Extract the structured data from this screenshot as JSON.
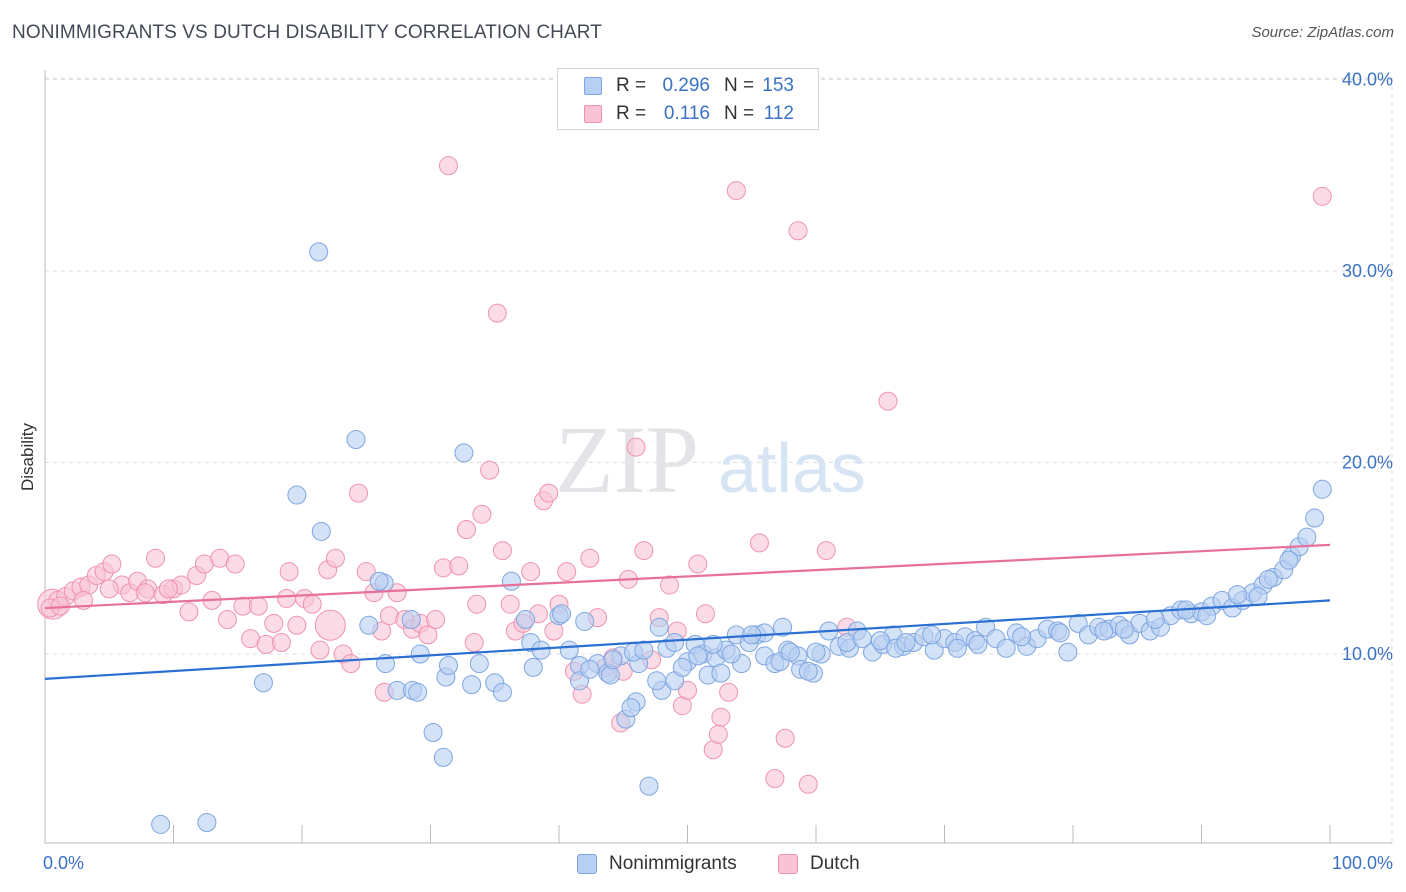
{
  "title": "NONIMMIGRANTS VS DUTCH DISABILITY CORRELATION CHART",
  "source": "Source: ZipAtlas.com",
  "watermark": {
    "zip": "ZIP",
    "atlas": "atlas"
  },
  "legend_top": [
    {
      "r_label": "R =",
      "r_value": "0.296",
      "n_label": "N =",
      "n_value": "153"
    },
    {
      "r_label": "R =",
      "r_value": "0.116",
      "n_label": "N =",
      "n_value": "112"
    }
  ],
  "legend_bottom": [
    {
      "label": "Nonimmigrants"
    },
    {
      "label": "Dutch"
    }
  ],
  "colors": {
    "blue_fill": "#b7cff2",
    "blue_stroke": "#7ea6e0",
    "blue_line": "#2a6fd1",
    "pink_fill": "#f8c3d4",
    "pink_stroke": "#ef93b1",
    "pink_line": "#e8709c",
    "tick_label": "#3a72c4",
    "grid": "#dcdcdc"
  },
  "chart_data": {
    "type": "scatter",
    "title": "NONIMMIGRANTS VS DUTCH DISABILITY CORRELATION CHART",
    "xlabel": "",
    "ylabel": "Disability",
    "xlim": [
      0,
      100
    ],
    "ylim": [
      0,
      42
    ],
    "x_ticks": [
      "0.0%",
      "100.0%"
    ],
    "y_ticks": [
      {
        "value": 10,
        "label": "10.0%"
      },
      {
        "value": 20,
        "label": "20.0%"
      },
      {
        "value": 30,
        "label": "30.0%"
      },
      {
        "value": 40,
        "label": "40.0%"
      }
    ],
    "grid": true,
    "legend_position": "top-center",
    "series": [
      {
        "name": "Nonimmigrants",
        "r": 0.296,
        "n": 153,
        "trend": {
          "x": [
            0,
            100
          ],
          "y": [
            8.7,
            12.8
          ]
        },
        "points": [
          [
            21.3,
            31.0
          ],
          [
            24.2,
            21.2
          ],
          [
            32.6,
            20.5
          ],
          [
            19.6,
            18.3
          ],
          [
            21.5,
            16.4
          ],
          [
            26.4,
            13.7
          ],
          [
            26.0,
            13.8
          ],
          [
            25.2,
            11.5
          ],
          [
            36.3,
            13.8
          ],
          [
            37.4,
            11.8
          ],
          [
            26.5,
            9.5
          ],
          [
            29.2,
            10.0
          ],
          [
            28.5,
            11.8
          ],
          [
            31.2,
            8.8
          ],
          [
            31.4,
            9.4
          ],
          [
            33.8,
            9.5
          ],
          [
            37.8,
            10.6
          ],
          [
            38.6,
            10.2
          ],
          [
            40.0,
            12.0
          ],
          [
            40.8,
            10.2
          ],
          [
            41.6,
            9.4
          ],
          [
            40.2,
            12.1
          ],
          [
            42.0,
            11.7
          ],
          [
            43.0,
            9.5
          ],
          [
            43.8,
            9.0
          ],
          [
            44.8,
            9.9
          ],
          [
            46.2,
            9.5
          ],
          [
            47.8,
            11.4
          ],
          [
            48.4,
            10.3
          ],
          [
            49.0,
            10.6
          ],
          [
            50.6,
            10.5
          ],
          [
            51.2,
            10.0
          ],
          [
            52.2,
            9.8
          ],
          [
            53.0,
            10.2
          ],
          [
            53.8,
            11.0
          ],
          [
            54.2,
            9.5
          ],
          [
            55.4,
            11.0
          ],
          [
            56.0,
            9.9
          ],
          [
            56.8,
            9.5
          ],
          [
            57.8,
            10.2
          ],
          [
            58.6,
            9.9
          ],
          [
            58.8,
            9.2
          ],
          [
            59.8,
            9.0
          ],
          [
            60.4,
            10.0
          ],
          [
            61.8,
            10.4
          ],
          [
            62.6,
            10.3
          ],
          [
            63.2,
            11.2
          ],
          [
            64.4,
            10.1
          ],
          [
            65.2,
            10.5
          ],
          [
            66.0,
            11.0
          ],
          [
            66.8,
            10.4
          ],
          [
            67.6,
            10.6
          ],
          [
            68.4,
            10.9
          ],
          [
            69.2,
            10.2
          ],
          [
            70.0,
            10.8
          ],
          [
            70.8,
            10.6
          ],
          [
            71.6,
            10.9
          ],
          [
            72.4,
            10.7
          ],
          [
            73.2,
            11.4
          ],
          [
            74.0,
            10.8
          ],
          [
            74.8,
            10.3
          ],
          [
            75.6,
            11.1
          ],
          [
            76.4,
            10.4
          ],
          [
            77.2,
            10.8
          ],
          [
            78.0,
            11.3
          ],
          [
            78.8,
            11.2
          ],
          [
            79.6,
            10.1
          ],
          [
            80.4,
            11.6
          ],
          [
            81.2,
            11.0
          ],
          [
            82.0,
            11.4
          ],
          [
            82.8,
            11.3
          ],
          [
            83.6,
            11.5
          ],
          [
            84.4,
            11.0
          ],
          [
            85.2,
            11.6
          ],
          [
            86.0,
            11.2
          ],
          [
            86.8,
            11.4
          ],
          [
            87.6,
            12.0
          ],
          [
            88.4,
            12.3
          ],
          [
            89.2,
            12.1
          ],
          [
            90.0,
            12.2
          ],
          [
            90.8,
            12.5
          ],
          [
            91.6,
            12.8
          ],
          [
            92.4,
            12.4
          ],
          [
            93.2,
            12.8
          ],
          [
            94.0,
            13.2
          ],
          [
            94.8,
            13.6
          ],
          [
            95.6,
            14.0
          ],
          [
            96.4,
            14.4
          ],
          [
            97.0,
            15.1
          ],
          [
            97.6,
            15.6
          ],
          [
            98.2,
            16.1
          ],
          [
            98.8,
            17.1
          ],
          [
            99.4,
            18.6
          ],
          [
            12.6,
            1.2
          ],
          [
            9.0,
            1.1
          ],
          [
            47.0,
            3.1
          ],
          [
            30.2,
            5.9
          ],
          [
            31.0,
            4.6
          ],
          [
            45.8,
            10.1
          ],
          [
            41.6,
            8.6
          ],
          [
            27.4,
            8.1
          ],
          [
            35.0,
            8.5
          ],
          [
            33.2,
            8.4
          ],
          [
            44.0,
            8.9
          ],
          [
            46.6,
            10.2
          ],
          [
            48.0,
            8.1
          ],
          [
            49.0,
            8.6
          ],
          [
            50.0,
            9.6
          ],
          [
            51.6,
            8.9
          ],
          [
            52.6,
            9.0
          ],
          [
            53.4,
            10.0
          ],
          [
            54.8,
            10.6
          ],
          [
            56.0,
            11.1
          ],
          [
            57.2,
            9.6
          ],
          [
            58.0,
            10.1
          ],
          [
            59.4,
            9.1
          ],
          [
            60.0,
            10.1
          ],
          [
            61.0,
            11.2
          ],
          [
            62.4,
            10.6
          ],
          [
            63.6,
            10.8
          ],
          [
            65.0,
            10.7
          ],
          [
            66.2,
            10.3
          ],
          [
            67.0,
            10.6
          ],
          [
            69.0,
            11.0
          ],
          [
            71.0,
            10.3
          ],
          [
            72.6,
            10.5
          ],
          [
            76.0,
            10.9
          ],
          [
            79.0,
            11.1
          ],
          [
            82.4,
            11.2
          ],
          [
            84.0,
            11.3
          ],
          [
            86.4,
            11.8
          ],
          [
            88.8,
            12.3
          ],
          [
            90.4,
            12.0
          ],
          [
            92.8,
            13.1
          ],
          [
            94.4,
            13.0
          ],
          [
            95.2,
            13.9
          ],
          [
            96.8,
            14.9
          ],
          [
            17.0,
            8.5
          ],
          [
            28.6,
            8.1
          ],
          [
            35.6,
            8.0
          ],
          [
            38.0,
            9.3
          ],
          [
            42.4,
            9.2
          ],
          [
            44.2,
            9.7
          ],
          [
            45.2,
            6.6
          ],
          [
            46.0,
            7.5
          ],
          [
            47.6,
            8.6
          ],
          [
            49.6,
            9.3
          ],
          [
            50.8,
            9.9
          ],
          [
            52.0,
            10.5
          ],
          [
            55.0,
            11.0
          ],
          [
            57.4,
            11.4
          ],
          [
            45.6,
            7.2
          ],
          [
            29.0,
            8.0
          ]
        ]
      },
      {
        "name": "Dutch",
        "r": 0.116,
        "n": 112,
        "trend": {
          "x": [
            0,
            100
          ],
          "y": [
            12.4,
            15.7
          ]
        },
        "points": [
          [
            0.6,
            12.6
          ],
          [
            1.0,
            12.8
          ],
          [
            1.6,
            13.0
          ],
          [
            2.2,
            13.3
          ],
          [
            2.8,
            13.5
          ],
          [
            3.4,
            13.6
          ],
          [
            4.0,
            14.1
          ],
          [
            4.6,
            14.3
          ],
          [
            5.2,
            14.7
          ],
          [
            6.0,
            13.6
          ],
          [
            6.6,
            13.2
          ],
          [
            7.2,
            13.8
          ],
          [
            8.0,
            13.4
          ],
          [
            8.6,
            15.0
          ],
          [
            9.2,
            13.1
          ],
          [
            10.0,
            13.4
          ],
          [
            10.6,
            13.6
          ],
          [
            11.2,
            12.2
          ],
          [
            11.8,
            14.1
          ],
          [
            12.4,
            14.7
          ],
          [
            13.0,
            12.8
          ],
          [
            13.6,
            15.0
          ],
          [
            14.2,
            11.8
          ],
          [
            14.8,
            14.7
          ],
          [
            15.4,
            12.5
          ],
          [
            16.0,
            10.8
          ],
          [
            16.6,
            12.5
          ],
          [
            17.2,
            10.5
          ],
          [
            17.8,
            11.6
          ],
          [
            18.4,
            10.6
          ],
          [
            19.0,
            14.3
          ],
          [
            19.6,
            11.5
          ],
          [
            20.2,
            12.9
          ],
          [
            20.8,
            12.6
          ],
          [
            21.4,
            10.2
          ],
          [
            22.0,
            14.4
          ],
          [
            22.6,
            15.0
          ],
          [
            23.2,
            10.0
          ],
          [
            23.8,
            9.5
          ],
          [
            24.4,
            18.4
          ],
          [
            25.0,
            14.3
          ],
          [
            25.6,
            13.2
          ],
          [
            26.2,
            11.2
          ],
          [
            26.8,
            12.0
          ],
          [
            27.4,
            13.2
          ],
          [
            28.0,
            11.8
          ],
          [
            28.6,
            11.3
          ],
          [
            29.2,
            11.6
          ],
          [
            29.8,
            11.0
          ],
          [
            30.4,
            11.8
          ],
          [
            31.0,
            14.5
          ],
          [
            31.4,
            35.5
          ],
          [
            32.2,
            14.6
          ],
          [
            32.8,
            16.5
          ],
          [
            33.4,
            10.6
          ],
          [
            34.0,
            17.3
          ],
          [
            34.6,
            19.6
          ],
          [
            35.2,
            27.8
          ],
          [
            35.6,
            15.4
          ],
          [
            36.2,
            12.6
          ],
          [
            36.6,
            11.2
          ],
          [
            37.2,
            11.6
          ],
          [
            37.8,
            14.3
          ],
          [
            38.4,
            12.1
          ],
          [
            38.8,
            18.0
          ],
          [
            39.2,
            18.4
          ],
          [
            40.0,
            12.6
          ],
          [
            40.6,
            14.3
          ],
          [
            41.2,
            9.1
          ],
          [
            41.8,
            7.9
          ],
          [
            42.4,
            15.0
          ],
          [
            43.0,
            11.9
          ],
          [
            43.6,
            9.3
          ],
          [
            44.2,
            9.8
          ],
          [
            44.8,
            6.4
          ],
          [
            45.4,
            13.9
          ],
          [
            46.0,
            20.8
          ],
          [
            46.6,
            15.4
          ],
          [
            47.2,
            9.7
          ],
          [
            47.8,
            11.9
          ],
          [
            48.6,
            13.6
          ],
          [
            49.2,
            11.2
          ],
          [
            49.6,
            7.3
          ],
          [
            50.0,
            8.1
          ],
          [
            50.8,
            14.7
          ],
          [
            51.4,
            12.1
          ],
          [
            52.0,
            5.0
          ],
          [
            52.6,
            6.7
          ],
          [
            53.2,
            8.0
          ],
          [
            53.8,
            34.2
          ],
          [
            55.6,
            15.8
          ],
          [
            56.8,
            3.5
          ],
          [
            57.6,
            5.6
          ],
          [
            58.6,
            32.1
          ],
          [
            59.4,
            3.2
          ],
          [
            60.8,
            15.4
          ],
          [
            62.4,
            11.4
          ],
          [
            65.6,
            23.2
          ],
          [
            33.6,
            12.6
          ],
          [
            22.2,
            11.5
          ],
          [
            26.4,
            8.0
          ],
          [
            18.8,
            12.9
          ],
          [
            3.0,
            12.8
          ],
          [
            5.0,
            13.4
          ],
          [
            7.8,
            13.2
          ],
          [
            0.4,
            12.4
          ],
          [
            1.2,
            12.5
          ],
          [
            9.6,
            13.4
          ],
          [
            39.6,
            11.2
          ],
          [
            45.0,
            9.1
          ],
          [
            52.4,
            5.8
          ],
          [
            99.4,
            33.9
          ]
        ]
      }
    ]
  }
}
